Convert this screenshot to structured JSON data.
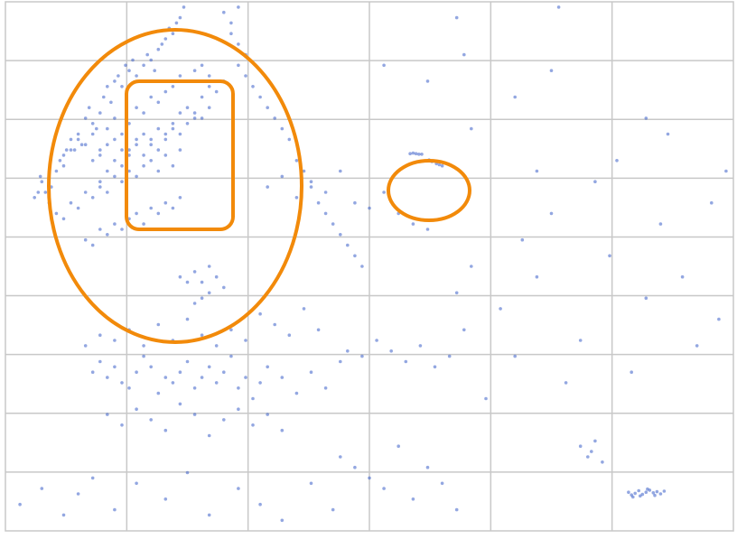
{
  "chart_data": {
    "type": "scatter",
    "title": "",
    "xlabel": "",
    "ylabel": "",
    "grid": true,
    "grid_vertical_count": 6,
    "grid_horizontal_count": 9,
    "point_color": "#3a5ec8",
    "annotation_color": "#f28a0a",
    "xlim": [
      0,
      100
    ],
    "ylim": [
      0,
      100
    ],
    "points": [
      [
        4,
        63
      ],
      [
        4.5,
        64
      ],
      [
        5,
        66
      ],
      [
        5.5,
        64
      ],
      [
        4.8,
        67
      ],
      [
        6,
        62
      ],
      [
        6.3,
        65
      ],
      [
        7,
        68
      ],
      [
        7.5,
        70
      ],
      [
        8,
        71
      ],
      [
        8.4,
        72
      ],
      [
        8,
        69
      ],
      [
        9,
        74
      ],
      [
        9.5,
        72
      ],
      [
        10,
        75
      ],
      [
        10.5,
        73
      ],
      [
        11,
        78
      ],
      [
        11.5,
        80
      ],
      [
        12,
        77
      ],
      [
        12.5,
        76
      ],
      [
        13,
        79
      ],
      [
        13.5,
        82
      ],
      [
        14,
        84
      ],
      [
        14.5,
        81
      ],
      [
        15,
        85
      ],
      [
        15.5,
        86
      ],
      [
        16,
        84
      ],
      [
        16.5,
        88
      ],
      [
        17,
        87
      ],
      [
        17.5,
        89
      ],
      [
        18,
        86
      ],
      [
        18.5,
        85
      ],
      [
        19,
        88
      ],
      [
        19.5,
        90
      ],
      [
        20,
        89
      ],
      [
        20.5,
        87
      ],
      [
        21,
        91
      ],
      [
        21.5,
        92
      ],
      [
        22,
        93
      ],
      [
        22.5,
        95
      ],
      [
        23,
        94
      ],
      [
        23.5,
        96
      ],
      [
        24,
        97
      ],
      [
        24.5,
        99
      ],
      [
        7,
        60
      ],
      [
        8,
        59
      ],
      [
        9,
        62
      ],
      [
        10,
        61
      ],
      [
        11,
        64
      ],
      [
        12,
        63
      ],
      [
        13,
        66
      ],
      [
        14,
        68
      ],
      [
        15,
        70
      ],
      [
        16,
        69
      ],
      [
        17,
        72
      ],
      [
        18,
        73
      ],
      [
        19,
        71
      ],
      [
        20,
        74
      ],
      [
        21,
        76
      ],
      [
        22,
        75
      ],
      [
        23,
        77
      ],
      [
        24,
        79
      ],
      [
        25,
        80
      ],
      [
        26,
        78
      ],
      [
        27,
        82
      ],
      [
        28,
        84
      ],
      [
        29,
        83
      ],
      [
        30,
        85
      ],
      [
        9,
        72
      ],
      [
        10,
        74
      ],
      [
        11,
        73
      ],
      [
        12,
        75
      ],
      [
        13,
        72
      ],
      [
        14,
        76
      ],
      [
        15,
        78
      ],
      [
        16,
        75
      ],
      [
        17,
        77
      ],
      [
        18,
        80
      ],
      [
        19,
        79
      ],
      [
        20,
        82
      ],
      [
        21,
        81
      ],
      [
        22,
        83
      ],
      [
        23,
        84
      ],
      [
        24,
        86
      ],
      [
        25,
        85
      ],
      [
        26,
        87
      ],
      [
        27,
        88
      ],
      [
        28,
        86
      ],
      [
        12,
        70
      ],
      [
        13,
        71
      ],
      [
        14,
        73
      ],
      [
        15,
        74
      ],
      [
        16,
        72
      ],
      [
        17,
        71
      ],
      [
        18,
        74
      ],
      [
        19,
        75
      ],
      [
        20,
        73
      ],
      [
        21,
        72
      ],
      [
        22,
        74
      ],
      [
        23,
        76
      ],
      [
        24,
        75
      ],
      [
        25,
        77
      ],
      [
        26,
        79
      ],
      [
        27,
        78
      ],
      [
        28,
        80
      ],
      [
        13,
        65
      ],
      [
        14,
        64
      ],
      [
        15,
        67
      ],
      [
        16,
        66
      ],
      [
        17,
        68
      ],
      [
        18,
        67
      ],
      [
        19,
        69
      ],
      [
        20,
        70
      ],
      [
        21,
        68
      ],
      [
        22,
        71
      ],
      [
        23,
        69
      ],
      [
        24,
        72
      ],
      [
        11,
        55
      ],
      [
        12,
        54
      ],
      [
        13,
        57
      ],
      [
        14,
        56
      ],
      [
        15,
        58
      ],
      [
        16,
        57
      ],
      [
        17,
        59
      ],
      [
        18,
        60
      ],
      [
        19,
        58
      ],
      [
        20,
        61
      ],
      [
        21,
        60
      ],
      [
        22,
        62
      ],
      [
        23,
        61
      ],
      [
        24,
        63
      ],
      [
        12,
        30
      ],
      [
        13,
        32
      ],
      [
        14,
        29
      ],
      [
        15,
        31
      ],
      [
        16,
        28
      ],
      [
        17,
        27
      ],
      [
        18,
        30
      ],
      [
        19,
        33
      ],
      [
        20,
        31
      ],
      [
        21,
        26
      ],
      [
        22,
        29
      ],
      [
        23,
        28
      ],
      [
        24,
        30
      ],
      [
        25,
        32
      ],
      [
        26,
        27
      ],
      [
        27,
        29
      ],
      [
        28,
        31
      ],
      [
        29,
        28
      ],
      [
        30,
        30
      ],
      [
        31,
        33
      ],
      [
        32,
        27
      ],
      [
        33,
        29
      ],
      [
        34,
        25
      ],
      [
        35,
        28
      ],
      [
        36,
        31
      ],
      [
        38,
        29
      ],
      [
        40,
        26
      ],
      [
        42,
        30
      ],
      [
        44,
        27
      ],
      [
        46,
        32
      ],
      [
        11,
        35
      ],
      [
        13,
        37
      ],
      [
        15,
        36
      ],
      [
        17,
        38
      ],
      [
        19,
        35
      ],
      [
        21,
        39
      ],
      [
        23,
        36
      ],
      [
        25,
        40
      ],
      [
        27,
        37
      ],
      [
        29,
        35
      ],
      [
        31,
        38
      ],
      [
        33,
        36
      ],
      [
        35,
        41
      ],
      [
        37,
        39
      ],
      [
        39,
        37
      ],
      [
        41,
        42
      ],
      [
        43,
        38
      ],
      [
        14,
        22
      ],
      [
        16,
        20
      ],
      [
        18,
        23
      ],
      [
        20,
        21
      ],
      [
        22,
        19
      ],
      [
        24,
        24
      ],
      [
        26,
        22
      ],
      [
        28,
        18
      ],
      [
        30,
        21
      ],
      [
        32,
        23
      ],
      [
        34,
        20
      ],
      [
        36,
        22
      ],
      [
        38,
        19
      ],
      [
        24,
        48
      ],
      [
        25,
        47
      ],
      [
        26,
        49
      ],
      [
        27,
        47
      ],
      [
        28,
        50
      ],
      [
        29,
        48
      ],
      [
        30,
        46
      ],
      [
        27,
        44
      ],
      [
        28,
        45
      ],
      [
        26,
        43
      ],
      [
        30,
        98
      ],
      [
        31,
        96
      ],
      [
        32,
        99
      ],
      [
        31,
        94
      ],
      [
        32,
        92
      ],
      [
        33,
        90
      ],
      [
        32,
        88
      ],
      [
        33,
        86
      ],
      [
        34,
        84
      ],
      [
        35,
        82
      ],
      [
        36,
        80
      ],
      [
        37,
        78
      ],
      [
        38,
        76
      ],
      [
        39,
        74
      ],
      [
        40,
        70
      ],
      [
        41,
        68
      ],
      [
        42,
        65
      ],
      [
        43,
        62
      ],
      [
        44,
        60
      ],
      [
        45,
        58
      ],
      [
        46,
        56
      ],
      [
        47,
        54
      ],
      [
        48,
        52
      ],
      [
        49,
        50
      ],
      [
        36,
        65
      ],
      [
        38,
        67
      ],
      [
        40,
        63
      ],
      [
        42,
        66
      ],
      [
        44,
        64
      ],
      [
        46,
        68
      ],
      [
        48,
        62
      ],
      [
        50,
        61
      ],
      [
        52,
        64
      ],
      [
        54,
        60
      ],
      [
        56,
        58
      ],
      [
        58,
        57
      ],
      [
        47,
        34
      ],
      [
        49,
        33
      ],
      [
        51,
        36
      ],
      [
        53,
        34
      ],
      [
        55,
        32
      ],
      [
        57,
        35
      ],
      [
        59,
        31
      ],
      [
        61,
        33
      ],
      [
        55.6,
        71.3
      ],
      [
        56,
        71.4
      ],
      [
        56.4,
        71.3
      ],
      [
        56.8,
        71.2
      ],
      [
        57.2,
        71.2
      ],
      [
        58.2,
        70.1
      ],
      [
        58.6,
        69.8
      ],
      [
        59.2,
        69.4
      ],
      [
        59.6,
        69.2
      ],
      [
        60,
        69
      ],
      [
        62,
        45
      ],
      [
        63,
        38
      ],
      [
        64,
        50
      ],
      [
        66,
        25
      ],
      [
        68,
        42
      ],
      [
        70,
        33
      ],
      [
        71,
        55
      ],
      [
        73,
        48
      ],
      [
        75,
        60
      ],
      [
        77,
        28
      ],
      [
        79,
        36
      ],
      [
        81,
        66
      ],
      [
        83,
        52
      ],
      [
        84,
        70
      ],
      [
        86,
        30
      ],
      [
        88,
        44
      ],
      [
        90,
        58
      ],
      [
        91,
        75
      ],
      [
        93,
        48
      ],
      [
        95,
        35
      ],
      [
        97,
        62
      ],
      [
        98,
        40
      ],
      [
        99,
        68
      ],
      [
        46,
        14
      ],
      [
        48,
        12
      ],
      [
        50,
        10
      ],
      [
        52,
        8
      ],
      [
        54,
        16
      ],
      [
        56,
        6
      ],
      [
        58,
        12
      ],
      [
        60,
        9
      ],
      [
        62,
        4
      ],
      [
        79,
        16
      ],
      [
        80,
        14
      ],
      [
        80.5,
        15
      ],
      [
        81,
        17
      ],
      [
        82,
        13
      ],
      [
        85.6,
        7.3
      ],
      [
        86,
        6.8
      ],
      [
        86.5,
        7.1
      ],
      [
        87,
        7.6
      ],
      [
        87.5,
        6.9
      ],
      [
        88,
        7.3
      ],
      [
        88.5,
        7.7
      ],
      [
        89,
        7.2
      ],
      [
        89.5,
        7.4
      ],
      [
        90,
        7.0
      ],
      [
        90.5,
        7.5
      ],
      [
        86.2,
        6.4
      ],
      [
        87.2,
        6.6
      ],
      [
        88.2,
        7.9
      ],
      [
        89.2,
        6.7
      ],
      [
        2,
        5
      ],
      [
        5,
        8
      ],
      [
        8,
        3
      ],
      [
        10,
        7
      ],
      [
        12,
        10
      ],
      [
        15,
        4
      ],
      [
        18,
        9
      ],
      [
        22,
        6
      ],
      [
        25,
        11
      ],
      [
        28,
        3
      ],
      [
        32,
        8
      ],
      [
        35,
        5
      ],
      [
        38,
        2
      ],
      [
        42,
        9
      ],
      [
        45,
        4
      ],
      [
        52,
        88
      ],
      [
        58,
        85
      ],
      [
        63,
        90
      ],
      [
        70,
        82
      ],
      [
        75,
        87
      ],
      [
        62,
        97
      ],
      [
        76,
        99
      ],
      [
        88,
        78
      ],
      [
        64,
        76
      ],
      [
        73,
        68
      ]
    ],
    "annotations": [
      {
        "shape": "ellipse",
        "label": ""
      },
      {
        "shape": "rounded-rect",
        "label": ""
      },
      {
        "shape": "ellipse",
        "label": ""
      }
    ]
  }
}
